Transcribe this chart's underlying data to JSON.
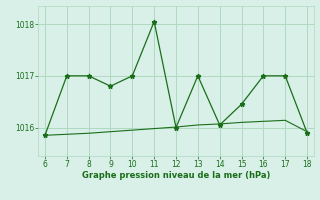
{
  "x": [
    6,
    7,
    8,
    9,
    10,
    11,
    12,
    13,
    14,
    15,
    16,
    17,
    18
  ],
  "y_main": [
    1015.85,
    1017.0,
    1017.0,
    1016.8,
    1017.0,
    1018.05,
    1016.0,
    1017.0,
    1016.05,
    1016.45,
    1017.0,
    1017.0,
    1015.9
  ],
  "y_flat": [
    1015.85,
    1015.87,
    1015.89,
    1015.92,
    1015.95,
    1015.98,
    1016.01,
    1016.05,
    1016.07,
    1016.1,
    1016.12,
    1016.14,
    1015.92
  ],
  "line_color": "#1a6e1a",
  "bg_color": "#d8f0e8",
  "grid_color": "#b0d8c0",
  "xlabel": "Graphe pression niveau de la mer (hPa)",
  "yticks": [
    1016,
    1017,
    1018
  ],
  "xlim": [
    5.7,
    18.3
  ],
  "ylim": [
    1015.45,
    1018.35
  ]
}
